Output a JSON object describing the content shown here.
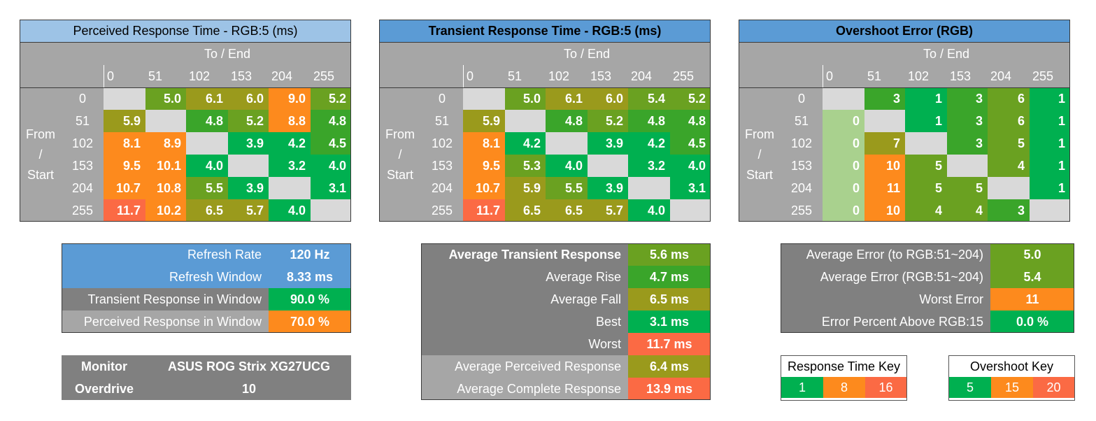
{
  "chart_data": [
    {
      "type": "heatmap",
      "title": "Perceived Response Time - RGB:5 (ms)",
      "title_bold": false,
      "title_color": "#9dc3e6",
      "x_header": "To / End",
      "y_header": [
        "From",
        "/",
        "Start"
      ],
      "x_ticks": [
        "0",
        "51",
        "102",
        "153",
        "204",
        "255"
      ],
      "y_ticks": [
        "0",
        "51",
        "102",
        "153",
        "204",
        "255"
      ],
      "key": "response",
      "values": [
        [
          null,
          5.0,
          6.1,
          6.0,
          9.0,
          5.2
        ],
        [
          5.9,
          null,
          4.8,
          5.2,
          8.8,
          4.8
        ],
        [
          8.1,
          8.9,
          null,
          3.9,
          4.2,
          4.5
        ],
        [
          9.5,
          10.1,
          4.0,
          null,
          3.2,
          4.0
        ],
        [
          10.7,
          10.8,
          5.5,
          3.9,
          null,
          3.1
        ],
        [
          11.7,
          10.2,
          6.5,
          5.7,
          4.0,
          null
        ]
      ],
      "labels": [
        [
          "",
          "5.0",
          "6.1",
          "6.0",
          "9.0",
          "5.2"
        ],
        [
          "5.9",
          "",
          "4.8",
          "5.2",
          "8.8",
          "4.8"
        ],
        [
          "8.1",
          "8.9",
          "",
          "3.9",
          "4.2",
          "4.5"
        ],
        [
          "9.5",
          "10.1",
          "4.0",
          "",
          "3.2",
          "4.0"
        ],
        [
          "10.7",
          "10.8",
          "5.5",
          "3.9",
          "",
          "3.1"
        ],
        [
          "11.7",
          "10.2",
          "6.5",
          "5.7",
          "4.0",
          ""
        ]
      ]
    },
    {
      "type": "heatmap",
      "title": "Transient Response Time - RGB:5 (ms)",
      "title_bold": true,
      "title_color": "#5b9bd5",
      "x_header": "To / End",
      "y_header": [
        "From",
        "/",
        "Start"
      ],
      "x_ticks": [
        "0",
        "51",
        "102",
        "153",
        "204",
        "255"
      ],
      "y_ticks": [
        "0",
        "51",
        "102",
        "153",
        "204",
        "255"
      ],
      "key": "response",
      "values": [
        [
          null,
          5.0,
          6.1,
          6.0,
          5.4,
          5.2
        ],
        [
          5.9,
          null,
          4.8,
          5.2,
          4.8,
          4.8
        ],
        [
          8.1,
          4.2,
          null,
          3.9,
          4.2,
          4.5
        ],
        [
          9.5,
          5.3,
          4.0,
          null,
          3.2,
          4.0
        ],
        [
          10.7,
          5.9,
          5.5,
          3.9,
          null,
          3.1
        ],
        [
          11.7,
          6.5,
          6.5,
          5.7,
          4.0,
          null
        ]
      ],
      "labels": [
        [
          "",
          "5.0",
          "6.1",
          "6.0",
          "5.4",
          "5.2"
        ],
        [
          "5.9",
          "",
          "4.8",
          "5.2",
          "4.8",
          "4.8"
        ],
        [
          "8.1",
          "4.2",
          "",
          "3.9",
          "4.2",
          "4.5"
        ],
        [
          "9.5",
          "5.3",
          "4.0",
          "",
          "3.2",
          "4.0"
        ],
        [
          "10.7",
          "5.9",
          "5.5",
          "3.9",
          "",
          "3.1"
        ],
        [
          "11.7",
          "6.5",
          "6.5",
          "5.7",
          "4.0",
          ""
        ]
      ]
    },
    {
      "type": "heatmap",
      "title": "Overshoot Error (RGB)",
      "title_bold": true,
      "title_color": "#5b9bd5",
      "x_header": "To / End",
      "y_header": [
        "From",
        "/",
        "Start"
      ],
      "x_ticks": [
        "0",
        "51",
        "102",
        "153",
        "204",
        "255"
      ],
      "y_ticks": [
        "0",
        "51",
        "102",
        "153",
        "204",
        "255"
      ],
      "key": "overshoot",
      "values": [
        [
          null,
          3,
          1,
          3,
          6,
          1
        ],
        [
          0,
          null,
          1,
          3,
          6,
          1
        ],
        [
          0,
          7,
          null,
          3,
          5,
          1
        ],
        [
          0,
          10,
          5,
          null,
          4,
          1
        ],
        [
          0,
          11,
          5,
          5,
          null,
          1
        ],
        [
          0,
          10,
          4,
          4,
          3,
          null
        ]
      ],
      "labels": [
        [
          "",
          "3",
          "1",
          "3",
          "6",
          "1"
        ],
        [
          "0",
          "",
          "1",
          "3",
          "6",
          "1"
        ],
        [
          "0",
          "7",
          "",
          "3",
          "5",
          "1"
        ],
        [
          "0",
          "10",
          "5",
          "",
          "4",
          "1"
        ],
        [
          "0",
          "11",
          "5",
          "5",
          "",
          "1"
        ],
        [
          "0",
          "10",
          "4",
          "4",
          "3",
          ""
        ]
      ]
    }
  ],
  "colors": {
    "empty": "#d9d9d9",
    "light_green": "#a9d18e",
    "green": "#00b050",
    "green2": "#3aa52a",
    "olive_green": "#6aa121",
    "olive": "#9a9a1c",
    "orange": "#fd8a1d",
    "red_orange": "#fb6a44",
    "blue": "#5b9bd5",
    "gray_dark": "#808080",
    "gray_mid": "#a6a6a6"
  },
  "refresh_table": [
    {
      "label": "Refresh Rate",
      "value": "120 Hz",
      "label_color": "#5b9bd5",
      "value_color": "#5b9bd5"
    },
    {
      "label": "Refresh Window",
      "value": "8.33 ms",
      "label_color": "#5b9bd5",
      "value_color": "#5b9bd5"
    },
    {
      "label": "Transient Response in Window",
      "value": "90.0 %",
      "label_color": "#808080",
      "value_color": "#00b050"
    },
    {
      "label": "Perceived Response in Window",
      "value": "70.0 %",
      "label_color": "#a6a6a6",
      "value_color": "#fd8a1d"
    }
  ],
  "monitor": {
    "monitor_label": "Monitor",
    "monitor_value": "ASUS ROG Strix XG27UCG",
    "overdrive_label": "Overdrive",
    "overdrive_value": "10"
  },
  "average_table": [
    {
      "label": "Average Transient Response",
      "value": "5.6 ms",
      "bold": true,
      "label_color": "#808080",
      "value_color": "#6aa121"
    },
    {
      "label": "Average Rise",
      "value": "4.7 ms",
      "bold": false,
      "label_color": "#808080",
      "value_color": "#3aa52a"
    },
    {
      "label": "Average Fall",
      "value": "6.5 ms",
      "bold": false,
      "label_color": "#808080",
      "value_color": "#9a9a1c"
    },
    {
      "label": "Best",
      "value": "3.1 ms",
      "bold": false,
      "label_color": "#808080",
      "value_color": "#00b050"
    },
    {
      "label": "Worst",
      "value": "11.7 ms",
      "bold": false,
      "label_color": "#808080",
      "value_color": "#fb6a44"
    },
    {
      "label": "Average Perceived Response",
      "value": "6.4 ms",
      "bold": false,
      "label_color": "#a6a6a6",
      "value_color": "#9a9a1c"
    },
    {
      "label": "Average Complete Response",
      "value": "13.9 ms",
      "bold": false,
      "label_color": "#a6a6a6",
      "value_color": "#fb6a44"
    }
  ],
  "error_table": [
    {
      "label": "Average Error (to RGB:51~204)",
      "value": "5.0",
      "value_color": "#6aa121"
    },
    {
      "label": "Average Error (RGB:51~204)",
      "value": "5.4",
      "value_color": "#6aa121"
    },
    {
      "label": "Worst Error",
      "value": "11",
      "value_color": "#fd8a1d"
    },
    {
      "label": "Error Percent Above RGB:15",
      "value": "0.0 %",
      "value_color": "#00b050"
    }
  ],
  "response_key": {
    "title": "Response Time Key",
    "items": [
      {
        "label": "1",
        "color": "#00b050"
      },
      {
        "label": "8",
        "color": "#fd8a1d"
      },
      {
        "label": "16",
        "color": "#fb6a44"
      }
    ]
  },
  "overshoot_key": {
    "title": "Overshoot Key",
    "items": [
      {
        "label": "5",
        "color": "#00b050"
      },
      {
        "label": "15",
        "color": "#fd8a1d"
      },
      {
        "label": "20",
        "color": "#fb6a44"
      }
    ]
  }
}
